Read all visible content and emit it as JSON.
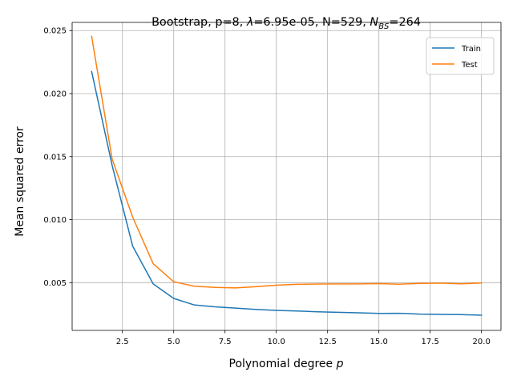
{
  "chart_data": {
    "type": "line",
    "title": {
      "prefix": "Bootstrap, p=8, ",
      "lambda_symbol": "λ",
      "lambda_rest": "=6.95e-05, N=529, ",
      "nbs_symbol": "N",
      "nbs_sub": "BS",
      "nbs_rest": "=264"
    },
    "xlabel": {
      "text": "Polynomial degree ",
      "var": "p"
    },
    "ylabel": "Mean squared error",
    "xlim": [
      0.05,
      20.95
    ],
    "ylim": [
      0.00121,
      0.02565
    ],
    "xticks": [
      2.5,
      5.0,
      7.5,
      10.0,
      12.5,
      15.0,
      17.5,
      20.0
    ],
    "xtick_labels": [
      "2.5",
      "5.0",
      "7.5",
      "10.0",
      "12.5",
      "15.0",
      "17.5",
      "20.0"
    ],
    "yticks": [
      0.005,
      0.01,
      0.015,
      0.02,
      0.025
    ],
    "ytick_labels": [
      "0.005",
      "0.010",
      "0.015",
      "0.020",
      "0.025"
    ],
    "grid": true,
    "legend_position": "top-right",
    "x": [
      1,
      2,
      3,
      4,
      5,
      6,
      7,
      8,
      9,
      10,
      11,
      12,
      13,
      14,
      15,
      16,
      17,
      18,
      19,
      20
    ],
    "series": [
      {
        "name": "Train",
        "color": "#1f77b4",
        "values": [
          0.02175,
          0.0143,
          0.0079,
          0.0049,
          0.00375,
          0.00323,
          0.00308,
          0.00298,
          0.00288,
          0.0028,
          0.00275,
          0.00269,
          0.00265,
          0.00261,
          0.00256,
          0.00257,
          0.0025,
          0.00248,
          0.00246,
          0.00242
        ]
      },
      {
        "name": "Test",
        "color": "#ff7f0e",
        "values": [
          0.02455,
          0.0148,
          0.0102,
          0.0065,
          0.00507,
          0.00472,
          0.00462,
          0.00458,
          0.00468,
          0.0048,
          0.00487,
          0.00489,
          0.0049,
          0.0049,
          0.00492,
          0.00488,
          0.00494,
          0.00496,
          0.00491,
          0.00497
        ]
      }
    ]
  }
}
